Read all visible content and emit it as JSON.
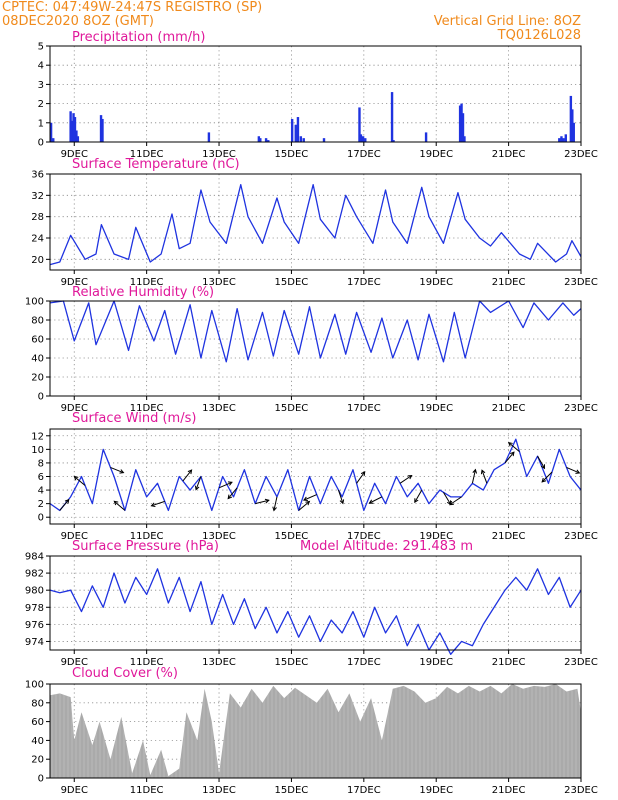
{
  "header": {
    "line1": "CPTEC:   047:49W-24:47S  REGISTRO (SP)",
    "line2": "08DEC2020 8OZ (GMT)",
    "grid_note": "Vertical Grid Line: 8OZ",
    "code": "TQ0126L028"
  },
  "colors": {
    "header": "#f08a1c",
    "title": "#e0189a",
    "line": "#1f33e0",
    "bar": "#1f33e0",
    "cloud": "#aaaaaa",
    "grid": "#888888"
  },
  "x_axis": {
    "start_day": 8.33,
    "end_day": 23,
    "ticks": [
      {
        "day": 9,
        "label": "9DEC"
      },
      {
        "day": 11,
        "label": "11DEC"
      },
      {
        "day": 13,
        "label": "13DEC"
      },
      {
        "day": 15,
        "label": "15DEC"
      },
      {
        "day": 17,
        "label": "17DEC"
      },
      {
        "day": 19,
        "label": "19DEC"
      },
      {
        "day": 21,
        "label": "21DEC"
      },
      {
        "day": 23,
        "label": "23DEC"
      }
    ]
  },
  "chart_data": [
    {
      "id": "precip",
      "type": "bar",
      "title": "Precipitation (mm/h)",
      "ylim": [
        0,
        5
      ],
      "yticks": [
        0,
        1,
        2,
        3,
        4,
        5
      ],
      "x": [
        8.36,
        8.42,
        8.9,
        8.94,
        8.98,
        9.02,
        9.06,
        9.1,
        9.74,
        9.78,
        12.72,
        14.1,
        14.14,
        14.3,
        14.36,
        15.02,
        15.12,
        15.18,
        15.26,
        15.34,
        15.9,
        16.88,
        16.92,
        16.98,
        17.04,
        17.78,
        17.82,
        18.72,
        19.66,
        19.7,
        19.74,
        19.78,
        22.4,
        22.46,
        22.52,
        22.58,
        22.72,
        22.76,
        22.8
      ],
      "values": [
        1.0,
        0.2,
        1.6,
        1.1,
        1.5,
        1.3,
        0.6,
        0.3,
        1.4,
        1.2,
        0.5,
        0.3,
        0.2,
        0.2,
        0.1,
        1.2,
        0.9,
        1.3,
        0.3,
        0.2,
        0.2,
        1.8,
        0.4,
        0.3,
        0.2,
        2.6,
        0.1,
        0.5,
        1.9,
        2.0,
        1.5,
        0.3,
        0.2,
        0.3,
        0.2,
        0.4,
        2.4,
        1.7,
        1.0
      ]
    },
    {
      "id": "temp",
      "type": "line",
      "title": "Surface Temperature (nC)",
      "ylim": [
        18,
        36
      ],
      "yticks": [
        20,
        24,
        28,
        32,
        36
      ],
      "x": [
        8.33,
        8.6,
        8.9,
        9.3,
        9.6,
        9.75,
        10.1,
        10.5,
        10.7,
        11.1,
        11.4,
        11.7,
        11.9,
        12.2,
        12.5,
        12.75,
        13.2,
        13.6,
        13.8,
        14.2,
        14.6,
        14.8,
        15.2,
        15.6,
        15.8,
        16.2,
        16.5,
        16.8,
        17.25,
        17.6,
        17.8,
        18.2,
        18.6,
        18.8,
        19.2,
        19.6,
        19.8,
        20.2,
        20.5,
        20.8,
        21.3,
        21.6,
        21.8,
        22.3,
        22.6,
        22.75,
        23
      ],
      "values": [
        19,
        19.5,
        24.5,
        20,
        21,
        26.5,
        21,
        20,
        26,
        19.5,
        21,
        28.5,
        22,
        23,
        33,
        27,
        23,
        34,
        28,
        23,
        31.5,
        27,
        23,
        34,
        27.5,
        24,
        32,
        28,
        23,
        33,
        27,
        23,
        33.5,
        28,
        23,
        32.5,
        27.5,
        24,
        22.5,
        25,
        21,
        20,
        23,
        19.5,
        21,
        23.5,
        20.5
      ]
    },
    {
      "id": "rh",
      "type": "line",
      "title": "Relative Humidity (%)",
      "ylim": [
        0,
        100
      ],
      "yticks": [
        0,
        20,
        40,
        60,
        80,
        100
      ],
      "x": [
        8.33,
        8.7,
        9.0,
        9.4,
        9.6,
        10.1,
        10.5,
        10.8,
        11.2,
        11.5,
        11.8,
        12.2,
        12.5,
        12.8,
        13.2,
        13.5,
        13.8,
        14.2,
        14.5,
        14.8,
        15.2,
        15.5,
        15.8,
        16.2,
        16.5,
        16.8,
        17.2,
        17.5,
        17.8,
        18.2,
        18.5,
        18.8,
        19.2,
        19.5,
        19.8,
        20.2,
        20.5,
        21.0,
        21.4,
        21.7,
        22.1,
        22.5,
        22.8,
        23
      ],
      "values": [
        98,
        100,
        58,
        98,
        54,
        100,
        48,
        95,
        58,
        90,
        44,
        96,
        40,
        90,
        36,
        92,
        38,
        88,
        42,
        90,
        44,
        94,
        40,
        86,
        44,
        88,
        46,
        82,
        40,
        80,
        38,
        86,
        36,
        88,
        40,
        100,
        88,
        100,
        72,
        98,
        80,
        98,
        85,
        92
      ]
    },
    {
      "id": "wind",
      "type": "line",
      "title": "Surface Wind (m/s)",
      "ylim": [
        -1,
        13
      ],
      "yticks": [
        0,
        2,
        4,
        6,
        8,
        10,
        12
      ],
      "x": [
        8.33,
        8.6,
        8.9,
        9.2,
        9.5,
        9.8,
        10.1,
        10.4,
        10.7,
        11.0,
        11.3,
        11.6,
        11.9,
        12.2,
        12.5,
        12.8,
        13.1,
        13.4,
        13.7,
        14.0,
        14.3,
        14.6,
        14.9,
        15.2,
        15.5,
        15.8,
        16.1,
        16.4,
        16.7,
        17.0,
        17.3,
        17.6,
        17.9,
        18.2,
        18.5,
        18.8,
        19.1,
        19.4,
        19.7,
        20.0,
        20.3,
        20.6,
        20.9,
        21.2,
        21.5,
        21.8,
        22.1,
        22.4,
        22.7,
        23
      ],
      "values": [
        2,
        1,
        3,
        6,
        2,
        10,
        6,
        1,
        7,
        3,
        5,
        1,
        6,
        4,
        6,
        1,
        6,
        3,
        7,
        2,
        6,
        3,
        7,
        1,
        6,
        2,
        6,
        3,
        7,
        1,
        5,
        2,
        6,
        3,
        5,
        2,
        4,
        3,
        3,
        5,
        4,
        7,
        8,
        11.5,
        6,
        9,
        5,
        10,
        6,
        4
      ],
      "arrows": [
        {
          "x": 8.6,
          "u": 0.5,
          "v": 0.6
        },
        {
          "x": 9.3,
          "u": -0.6,
          "v": 0.5
        },
        {
          "x": 10.0,
          "u": 1.0,
          "v": -0.4
        },
        {
          "x": 10.4,
          "u": -0.7,
          "v": 0.6
        },
        {
          "x": 11.5,
          "u": -0.9,
          "v": -0.3
        },
        {
          "x": 12.0,
          "u": 0.4,
          "v": 0.5
        },
        {
          "x": 12.5,
          "u": -0.3,
          "v": -0.8
        },
        {
          "x": 13.0,
          "u": 0.7,
          "v": 0.3
        },
        {
          "x": 13.5,
          "u": -0.5,
          "v": -0.6
        },
        {
          "x": 14.0,
          "u": 0.8,
          "v": 0.2
        },
        {
          "x": 14.6,
          "u": -0.2,
          "v": -0.9
        },
        {
          "x": 15.2,
          "u": 0.6,
          "v": 0.5
        },
        {
          "x": 15.7,
          "u": -0.7,
          "v": -0.3
        },
        {
          "x": 16.3,
          "u": 0.2,
          "v": -0.6
        },
        {
          "x": 16.8,
          "u": 0.5,
          "v": 0.7
        },
        {
          "x": 17.5,
          "u": -0.8,
          "v": -0.4
        },
        {
          "x": 18.0,
          "u": 0.6,
          "v": 0.4
        },
        {
          "x": 18.6,
          "u": -0.4,
          "v": -0.7
        },
        {
          "x": 19.2,
          "u": 0.3,
          "v": -0.5
        },
        {
          "x": 19.7,
          "u": -0.6,
          "v": -0.4
        },
        {
          "x": 20.0,
          "u": 0.2,
          "v": 0.9
        },
        {
          "x": 20.4,
          "u": -0.3,
          "v": 0.8
        },
        {
          "x": 20.9,
          "u": 0.5,
          "v": 0.6
        },
        {
          "x": 21.3,
          "u": -0.6,
          "v": 0.5
        },
        {
          "x": 21.8,
          "u": 0.4,
          "v": -0.7
        },
        {
          "x": 22.2,
          "u": -0.5,
          "v": -0.5
        },
        {
          "x": 22.6,
          "u": 0.7,
          "v": -0.3
        }
      ]
    },
    {
      "id": "pres",
      "type": "line",
      "title": "Surface Pressure (hPa)",
      "annotation": "Model Altitude: 291.483 m",
      "ylim": [
        973,
        984
      ],
      "yticks": [
        974,
        976,
        978,
        980,
        982,
        984
      ],
      "x": [
        8.33,
        8.6,
        8.9,
        9.2,
        9.5,
        9.8,
        10.1,
        10.4,
        10.7,
        11.0,
        11.3,
        11.6,
        11.9,
        12.2,
        12.5,
        12.8,
        13.1,
        13.4,
        13.7,
        14.0,
        14.3,
        14.6,
        14.9,
        15.2,
        15.5,
        15.8,
        16.1,
        16.4,
        16.7,
        17.0,
        17.3,
        17.6,
        17.9,
        18.2,
        18.5,
        18.8,
        19.1,
        19.4,
        19.7,
        20.0,
        20.3,
        20.6,
        20.9,
        21.2,
        21.5,
        21.8,
        22.1,
        22.4,
        22.7,
        23
      ],
      "values": [
        980,
        979.7,
        980,
        977.5,
        980.5,
        978,
        982,
        978.5,
        981.5,
        979.5,
        982.5,
        978.5,
        981.5,
        977.5,
        981,
        976,
        979.5,
        976,
        979,
        975.5,
        978,
        975,
        977.5,
        974.5,
        977,
        974,
        976.5,
        975,
        977.5,
        974.5,
        978,
        975,
        977,
        973.5,
        976,
        973,
        975,
        972.5,
        974,
        973.5,
        976,
        978,
        980,
        981.5,
        980,
        982.5,
        979.5,
        981.5,
        978,
        980
      ]
    },
    {
      "id": "cloud",
      "type": "area",
      "title": "Cloud Cover (%)",
      "ylim": [
        0,
        100
      ],
      "yticks": [
        0,
        20,
        40,
        60,
        80,
        100
      ],
      "x": [
        8.33,
        8.6,
        8.9,
        9.0,
        9.2,
        9.5,
        9.7,
        10.0,
        10.3,
        10.6,
        10.9,
        11.1,
        11.4,
        11.6,
        11.9,
        12.1,
        12.4,
        12.6,
        12.8,
        13.0,
        13.3,
        13.6,
        13.9,
        14.2,
        14.5,
        14.8,
        15.1,
        15.4,
        15.7,
        16.0,
        16.3,
        16.6,
        16.9,
        17.2,
        17.5,
        17.8,
        18.1,
        18.4,
        18.7,
        19.0,
        19.3,
        19.6,
        19.9,
        20.2,
        20.5,
        20.8,
        21.1,
        21.4,
        21.7,
        22.0,
        22.3,
        22.6,
        22.9,
        23
      ],
      "values": [
        88,
        90,
        86,
        40,
        70,
        35,
        60,
        20,
        65,
        5,
        40,
        3,
        30,
        2,
        10,
        70,
        40,
        95,
        60,
        5,
        90,
        75,
        95,
        80,
        98,
        85,
        96,
        88,
        80,
        95,
        70,
        90,
        60,
        85,
        40,
        95,
        98,
        92,
        80,
        85,
        97,
        90,
        98,
        92,
        98,
        90,
        100,
        95,
        98,
        97,
        100,
        92,
        95,
        70
      ]
    }
  ]
}
